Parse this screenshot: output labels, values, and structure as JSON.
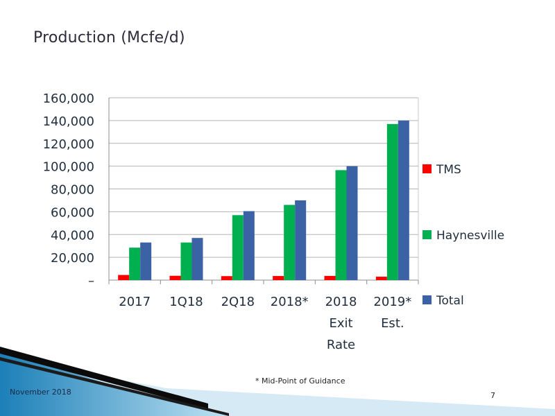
{
  "slide": {
    "title": "Production (Mcfe/d)",
    "footnote": "* Mid-Point of Guidance",
    "date": "November 2018",
    "page_number": "7"
  },
  "chart_data": {
    "type": "bar",
    "title": "",
    "xlabel": "",
    "ylabel": "",
    "categories": [
      "2017",
      "1Q18",
      "2Q18",
      "2018*",
      "2018 Exit Rate",
      "2019* Est."
    ],
    "category_lines": [
      [
        "2017"
      ],
      [
        "1Q18"
      ],
      [
        "2Q18"
      ],
      [
        "2018*"
      ],
      [
        "2018",
        "Exit",
        "Rate"
      ],
      [
        "2019*",
        "Est."
      ]
    ],
    "series": [
      {
        "name": "TMS",
        "color": "#ff0000",
        "values": [
          4500,
          3800,
          3500,
          3600,
          3700,
          3000
        ]
      },
      {
        "name": "Haynesville",
        "color": "#00b050",
        "values": [
          28500,
          33000,
          57000,
          66000,
          96500,
          137000
        ]
      },
      {
        "name": "Total",
        "color": "#3a62a5",
        "values": [
          33000,
          37000,
          60500,
          70000,
          100000,
          140000
        ]
      }
    ],
    "yticks": [
      {
        "value": 0,
        "label": "–"
      },
      {
        "value": 20000,
        "label": "20,000"
      },
      {
        "value": 40000,
        "label": "40,000"
      },
      {
        "value": 60000,
        "label": "60,000"
      },
      {
        "value": 80000,
        "label": "80,000"
      },
      {
        "value": 100000,
        "label": "100,000"
      },
      {
        "value": 120000,
        "label": "120,000"
      },
      {
        "value": 140000,
        "label": "140,000"
      },
      {
        "value": 160000,
        "label": "160,000"
      }
    ],
    "ylim": [
      0,
      160000
    ],
    "grid": true,
    "legend_position": "right"
  }
}
